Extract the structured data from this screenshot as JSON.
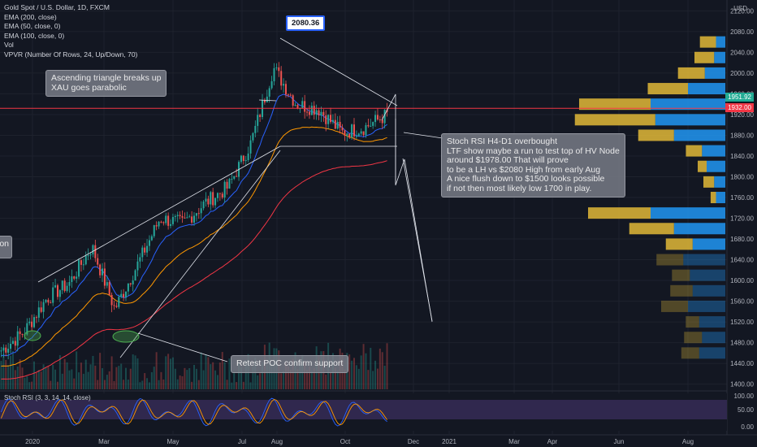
{
  "header": {
    "title": "Gold Spot / U.S. Dollar, 1D, FXCM",
    "indicators": [
      "EMA (200, close)",
      "EMA (50, close, 0)",
      "EMA (100, close, 0)",
      "Vol",
      "VPVR (Number Of Rows, 24, Up/Down, 70)"
    ],
    "currency": "USD"
  },
  "annotations": {
    "peak": "2080.36",
    "triangle": "Ascending triangle breaks up\nXAU goes parabolic",
    "stoch": "Stoch RSI H4-D1 overbought\nLTF show maybe a run to test top of HV Node\naround $1978.00 That will prove\nto be a LH vs $2080 High from early Aug\nA nice flush down to $1500 looks possible\nif not then most likely low 1700 in play.",
    "poc": "Retest POC confirm support",
    "left_fragment": "ion"
  },
  "price_labels": {
    "current": "1951.92",
    "hline": "1932.00"
  },
  "colors": {
    "background": "#131722",
    "up": "#26a69a",
    "down": "#ef5350",
    "ema200": "#f23645",
    "ema50": "#2962ff",
    "ema100": "#ff9800",
    "hline": "#f23645",
    "vp_up": "#2196f3",
    "vp_down": "#e2b937",
    "stoch_k": "#2962ff",
    "stoch_d": "#ff9800",
    "stoch_band": "#7e57c2"
  },
  "chart_data": {
    "type": "candlestick",
    "title": "Gold Spot / U.S. Dollar, 1D, FXCM",
    "ylim": [
      1390,
      2130
    ],
    "y_ticks": [
      1400,
      1440,
      1480,
      1520,
      1560,
      1600,
      1640,
      1680,
      1720,
      1760,
      1800,
      1840,
      1880,
      1920,
      1960,
      2000,
      2040,
      2080,
      2120
    ],
    "x_ticks": [
      "2020",
      "Mar",
      "May",
      "Jul",
      "Aug",
      "Oct",
      "Dec",
      "2021",
      "Mar",
      "Apr",
      "Jun",
      "Aug"
    ],
    "stoch_ticks": [
      "100.00",
      "50.00",
      "0.00"
    ],
    "stoch_title": "Stoch RSI (3, 3, 14, 14, close)",
    "price_path": [
      [
        1460,
        1470
      ],
      [
        1480,
        1520
      ],
      [
        1550,
        1580
      ],
      [
        1570,
        1620
      ],
      [
        1650,
        1680
      ],
      [
        1620,
        1470
      ],
      [
        1560,
        1700
      ],
      [
        1700,
        1740
      ],
      [
        1720,
        1700
      ],
      [
        1740,
        1760
      ],
      [
        1770,
        1790
      ],
      [
        1830,
        1900
      ],
      [
        1950,
        2070
      ],
      [
        1950,
        1930
      ],
      [
        1920,
        1940
      ],
      [
        1900,
        1870
      ],
      [
        1880,
        1910
      ],
      [
        1890,
        1950
      ]
    ],
    "key_levels": {
      "peak": 2080.36,
      "resistance": 1932.0,
      "support_line": 1862,
      "current": 1951.92
    },
    "vpvr_rows": [
      {
        "price": 2060,
        "up": 10,
        "down": 18
      },
      {
        "price": 2030,
        "up": 12,
        "down": 22
      },
      {
        "price": 2000,
        "up": 22,
        "down": 30
      },
      {
        "price": 1970,
        "up": 40,
        "down": 45
      },
      {
        "price": 1940,
        "up": 80,
        "down": 80
      },
      {
        "price": 1910,
        "up": 75,
        "down": 90
      },
      {
        "price": 1880,
        "up": 55,
        "down": 40
      },
      {
        "price": 1850,
        "up": 25,
        "down": 18
      },
      {
        "price": 1820,
        "up": 20,
        "down": 10
      },
      {
        "price": 1790,
        "up": 12,
        "down": 12
      },
      {
        "price": 1760,
        "up": 10,
        "down": 6
      },
      {
        "price": 1730,
        "up": 80,
        "down": 70
      },
      {
        "price": 1700,
        "up": 55,
        "down": 50
      },
      {
        "price": 1670,
        "up": 35,
        "down": 30
      },
      {
        "price": 1640,
        "up": 45,
        "down": 30
      },
      {
        "price": 1610,
        "up": 38,
        "down": 20
      },
      {
        "price": 1580,
        "up": 35,
        "down": 25
      },
      {
        "price": 1550,
        "up": 40,
        "down": 30
      },
      {
        "price": 1520,
        "up": 28,
        "down": 15
      },
      {
        "price": 1490,
        "up": 25,
        "down": 20
      },
      {
        "price": 1460,
        "up": 28,
        "down": 20
      }
    ]
  }
}
